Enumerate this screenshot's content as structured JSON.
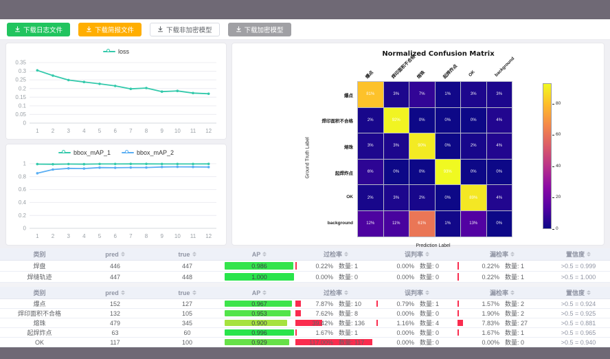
{
  "toolbar": {
    "buttons": [
      {
        "label": "下载日志文件",
        "variant": "green"
      },
      {
        "label": "下载简报文件",
        "variant": "orange"
      },
      {
        "label": "下载非加密模型",
        "variant": "plain"
      },
      {
        "label": "下载加密模型",
        "variant": "gray"
      }
    ]
  },
  "chart_data": [
    {
      "type": "line",
      "x": [
        1,
        2,
        3,
        4,
        5,
        6,
        7,
        8,
        9,
        10,
        11,
        12
      ],
      "series": [
        {
          "name": "loss",
          "color": "#33c9ab",
          "values": [
            0.305,
            0.275,
            0.249,
            0.238,
            0.227,
            0.215,
            0.198,
            0.203,
            0.182,
            0.186,
            0.174,
            0.17
          ]
        }
      ],
      "ylim": [
        0,
        0.35
      ],
      "yticks": [
        0,
        0.05,
        0.1,
        0.15,
        0.2,
        0.25,
        0.3,
        0.35
      ],
      "legend_position": "top"
    },
    {
      "type": "line",
      "x": [
        1,
        2,
        3,
        4,
        5,
        6,
        7,
        8,
        9,
        10,
        11,
        12
      ],
      "series": [
        {
          "name": "bbox_mAP_1",
          "color": "#33c9ab",
          "values": [
            0.994,
            0.992,
            0.995,
            0.993,
            0.996,
            0.996,
            0.997,
            0.997,
            0.996,
            0.996,
            0.996,
            0.997
          ]
        },
        {
          "name": "bbox_mAP_2",
          "color": "#59aef3",
          "values": [
            0.852,
            0.91,
            0.928,
            0.924,
            0.939,
            0.937,
            0.94,
            0.94,
            0.949,
            0.951,
            0.95,
            0.948
          ]
        }
      ],
      "ylim": [
        0,
        1
      ],
      "yticks": [
        0,
        0.2,
        0.4,
        0.6,
        0.8,
        1
      ],
      "legend_position": "top"
    },
    {
      "type": "heatmap",
      "title": "Normalized Confusion Matrix",
      "xlabel": "Prediction Label",
      "ylabel": "Ground Truth Label",
      "labels": [
        "爆点",
        "焊印面积不合格",
        "熔珠",
        "起焊炸点",
        "OK",
        "background"
      ],
      "matrix": [
        [
          81,
          3,
          7,
          1,
          3,
          3
        ],
        [
          2,
          92,
          0,
          0,
          0,
          4
        ],
        [
          3,
          3,
          90,
          0,
          2,
          4
        ],
        [
          6,
          0,
          0,
          93,
          0,
          0
        ],
        [
          2,
          3,
          2,
          0,
          89,
          4
        ],
        [
          12,
          11,
          61,
          1,
          13,
          0
        ]
      ],
      "unit": "%",
      "vmax": 93,
      "colorbar_ticks": [
        0,
        20,
        40,
        60,
        80
      ],
      "colormap": "plasma"
    }
  ],
  "tables": [
    {
      "headers": [
        {
          "label": "类别",
          "sortable": false
        },
        {
          "label": "pred",
          "sortable": true
        },
        {
          "label": "true",
          "sortable": true
        },
        {
          "label": "AP",
          "sortable": true
        },
        {
          "label": "过检率",
          "sortable": true
        },
        {
          "label": "误判率",
          "sortable": true
        },
        {
          "label": "漏检率",
          "sortable": true
        },
        {
          "label": "置信度",
          "sortable": true
        }
      ],
      "rows": [
        {
          "category": "焊盘",
          "pred": "446",
          "true": "447",
          "ap": "0.986",
          "ap_color": "#35e44c",
          "over": {
            "pct": "0.22%",
            "qty": "数量: 1",
            "bar": 0.22
          },
          "mis": {
            "pct": "0.00%",
            "qty": "数量: 0",
            "bar": 0
          },
          "miss": {
            "pct": "0.22%",
            "qty": "数量: 1",
            "bar": 0.22
          },
          "conf": ">0.5 = 0.999"
        },
        {
          "category": "焊缝轨迹",
          "pred": "447",
          "true": "448",
          "ap": "1.000",
          "ap_color": "#28e44b",
          "over": {
            "pct": "0.00%",
            "qty": "数量: 0",
            "bar": 0
          },
          "mis": {
            "pct": "0.00%",
            "qty": "数量: 0",
            "bar": 0
          },
          "miss": {
            "pct": "0.22%",
            "qty": "数量: 1",
            "bar": 0.22
          },
          "conf": ">0.5 = 1.000"
        }
      ]
    },
    {
      "headers": [
        {
          "label": "类别",
          "sortable": false
        },
        {
          "label": "pred",
          "sortable": true
        },
        {
          "label": "true",
          "sortable": true
        },
        {
          "label": "AP",
          "sortable": true
        },
        {
          "label": "过检率",
          "sortable": true
        },
        {
          "label": "误判率",
          "sortable": true
        },
        {
          "label": "漏检率",
          "sortable": true
        },
        {
          "label": "置信度",
          "sortable": true
        }
      ],
      "rows": [
        {
          "category": "爆点",
          "pred": "152",
          "true": "127",
          "ap": "0.967",
          "ap_color": "#3ee44b",
          "over": {
            "pct": "7.87%",
            "qty": "数量: 10",
            "bar": 7.87
          },
          "mis": {
            "pct": "0.79%",
            "qty": "数量: 1",
            "bar": 0.79
          },
          "miss": {
            "pct": "1.57%",
            "qty": "数量: 2",
            "bar": 1.57
          },
          "conf": ">0.5 = 0.924"
        },
        {
          "category": "焊印面积不合格",
          "pred": "132",
          "true": "105",
          "ap": "0.953",
          "ap_color": "#52e44a",
          "over": {
            "pct": "7.62%",
            "qty": "数量: 8",
            "bar": 7.62
          },
          "mis": {
            "pct": "0.00%",
            "qty": "数量: 0",
            "bar": 0
          },
          "miss": {
            "pct": "1.90%",
            "qty": "数量: 2",
            "bar": 1.9
          },
          "conf": ">0.5 = 0.925"
        },
        {
          "category": "熔珠",
          "pred": "479",
          "true": "345",
          "ap": "0.900",
          "ap_color": "#a6e23e",
          "over": {
            "pct": "39.42%",
            "qty": "数量: 136",
            "bar": 39.42
          },
          "mis": {
            "pct": "1.16%",
            "qty": "数量: 4",
            "bar": 1.16
          },
          "miss": {
            "pct": "7.83%",
            "qty": "数量: 27",
            "bar": 7.83
          },
          "conf": ">0.5 = 0.881"
        },
        {
          "category": "起焊炸点",
          "pred": "63",
          "true": "60",
          "ap": "0.996",
          "ap_color": "#29e44b",
          "over": {
            "pct": "1.67%",
            "qty": "数量: 1",
            "bar": 1.67
          },
          "mis": {
            "pct": "0.00%",
            "qty": "数量: 0",
            "bar": 0
          },
          "miss": {
            "pct": "1.67%",
            "qty": "数量: 1",
            "bar": 1.67
          },
          "conf": ">0.5 = 0.965"
        },
        {
          "category": "OK",
          "pred": "117",
          "true": "100",
          "ap": "0.929",
          "ap_color": "#67e148",
          "over": {
            "pct": "117.00%",
            "qty": "数量: 117",
            "bar": 117
          },
          "mis": {
            "pct": "0.00%",
            "qty": "数量: 0",
            "bar": 0
          },
          "miss": {
            "pct": "0.00%",
            "qty": "数量: 0",
            "bar": 0
          },
          "conf": ">0.5 = 0.940"
        }
      ]
    }
  ]
}
